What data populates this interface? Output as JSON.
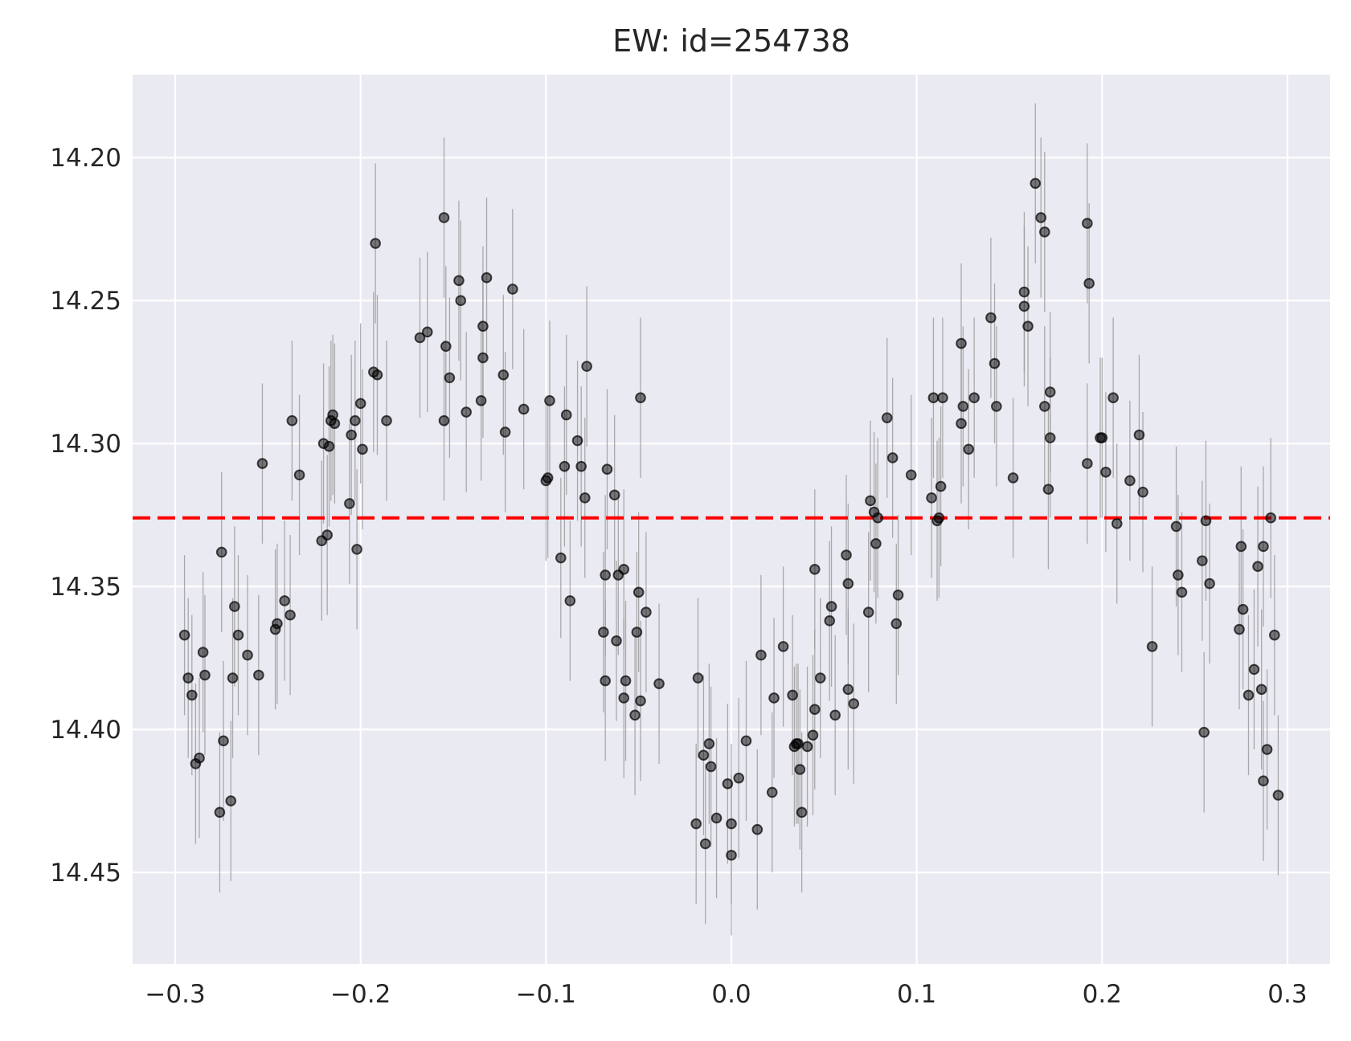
{
  "chart_data": {
    "type": "scatter",
    "title": "EW: id=254738",
    "xlabel": "",
    "ylabel": "",
    "xlim": [
      -0.323,
      0.323
    ],
    "ylim": [
      14.482,
      14.171
    ],
    "y_inverted": true,
    "grid": true,
    "x_ticks": [
      -0.3,
      -0.2,
      -0.1,
      0.0,
      0.1,
      0.2,
      0.3
    ],
    "x_tick_labels": [
      "−0.3",
      "−0.2",
      "−0.1",
      "0.0",
      "0.1",
      "0.2",
      "0.3"
    ],
    "y_ticks": [
      14.2,
      14.25,
      14.3,
      14.35,
      14.4,
      14.45
    ],
    "y_tick_labels": [
      "14.20",
      "14.25",
      "14.30",
      "14.35",
      "14.40",
      "14.45"
    ],
    "reference_line": {
      "y": 14.326,
      "color": "#ff0000",
      "style": "dashed"
    },
    "colors": {
      "background": "#eaeaf2",
      "grid": "#ffffff",
      "points": "#000000",
      "errorbars": "#999999"
    },
    "points": [
      {
        "x": -0.295,
        "y": 14.367,
        "err": 0.028
      },
      {
        "x": -0.293,
        "y": 14.382,
        "err": 0.028
      },
      {
        "x": -0.291,
        "y": 14.388,
        "err": 0.028
      },
      {
        "x": -0.289,
        "y": 14.412,
        "err": 0.028
      },
      {
        "x": -0.287,
        "y": 14.41,
        "err": 0.028
      },
      {
        "x": -0.285,
        "y": 14.373,
        "err": 0.028
      },
      {
        "x": -0.284,
        "y": 14.381,
        "err": 0.028
      },
      {
        "x": -0.276,
        "y": 14.429,
        "err": 0.028
      },
      {
        "x": -0.275,
        "y": 14.338,
        "err": 0.028
      },
      {
        "x": -0.274,
        "y": 14.404,
        "err": 0.028
      },
      {
        "x": -0.27,
        "y": 14.425,
        "err": 0.028
      },
      {
        "x": -0.269,
        "y": 14.382,
        "err": 0.028
      },
      {
        "x": -0.268,
        "y": 14.357,
        "err": 0.028
      },
      {
        "x": -0.266,
        "y": 14.367,
        "err": 0.028
      },
      {
        "x": -0.261,
        "y": 14.374,
        "err": 0.028
      },
      {
        "x": -0.255,
        "y": 14.381,
        "err": 0.028
      },
      {
        "x": -0.253,
        "y": 14.307,
        "err": 0.028
      },
      {
        "x": -0.246,
        "y": 14.365,
        "err": 0.028
      },
      {
        "x": -0.245,
        "y": 14.363,
        "err": 0.028
      },
      {
        "x": -0.241,
        "y": 14.355,
        "err": 0.028
      },
      {
        "x": -0.238,
        "y": 14.36,
        "err": 0.028
      },
      {
        "x": -0.237,
        "y": 14.292,
        "err": 0.028
      },
      {
        "x": -0.233,
        "y": 14.311,
        "err": 0.028
      },
      {
        "x": -0.221,
        "y": 14.334,
        "err": 0.028
      },
      {
        "x": -0.22,
        "y": 14.3,
        "err": 0.028
      },
      {
        "x": -0.218,
        "y": 14.332,
        "err": 0.028
      },
      {
        "x": -0.217,
        "y": 14.301,
        "err": 0.028
      },
      {
        "x": -0.216,
        "y": 14.292,
        "err": 0.028
      },
      {
        "x": -0.215,
        "y": 14.29,
        "err": 0.028
      },
      {
        "x": -0.214,
        "y": 14.293,
        "err": 0.028
      },
      {
        "x": -0.206,
        "y": 14.321,
        "err": 0.028
      },
      {
        "x": -0.205,
        "y": 14.297,
        "err": 0.028
      },
      {
        "x": -0.203,
        "y": 14.292,
        "err": 0.028
      },
      {
        "x": -0.202,
        "y": 14.337,
        "err": 0.028
      },
      {
        "x": -0.2,
        "y": 14.286,
        "err": 0.028
      },
      {
        "x": -0.199,
        "y": 14.302,
        "err": 0.028
      },
      {
        "x": -0.193,
        "y": 14.275,
        "err": 0.028
      },
      {
        "x": -0.192,
        "y": 14.23,
        "err": 0.028
      },
      {
        "x": -0.191,
        "y": 14.276,
        "err": 0.028
      },
      {
        "x": -0.186,
        "y": 14.292,
        "err": 0.028
      },
      {
        "x": -0.168,
        "y": 14.263,
        "err": 0.028
      },
      {
        "x": -0.164,
        "y": 14.261,
        "err": 0.028
      },
      {
        "x": -0.155,
        "y": 14.292,
        "err": 0.028
      },
      {
        "x": -0.155,
        "y": 14.221,
        "err": 0.028
      },
      {
        "x": -0.154,
        "y": 14.266,
        "err": 0.028
      },
      {
        "x": -0.152,
        "y": 14.277,
        "err": 0.028
      },
      {
        "x": -0.147,
        "y": 14.243,
        "err": 0.028
      },
      {
        "x": -0.146,
        "y": 14.25,
        "err": 0.028
      },
      {
        "x": -0.143,
        "y": 14.289,
        "err": 0.028
      },
      {
        "x": -0.135,
        "y": 14.285,
        "err": 0.028
      },
      {
        "x": -0.134,
        "y": 14.259,
        "err": 0.028
      },
      {
        "x": -0.134,
        "y": 14.27,
        "err": 0.028
      },
      {
        "x": -0.132,
        "y": 14.242,
        "err": 0.028
      },
      {
        "x": -0.123,
        "y": 14.276,
        "err": 0.028
      },
      {
        "x": -0.122,
        "y": 14.296,
        "err": 0.028
      },
      {
        "x": -0.118,
        "y": 14.246,
        "err": 0.028
      },
      {
        "x": -0.112,
        "y": 14.288,
        "err": 0.028
      },
      {
        "x": -0.1,
        "y": 14.313,
        "err": 0.028
      },
      {
        "x": -0.099,
        "y": 14.312,
        "err": 0.028
      },
      {
        "x": -0.098,
        "y": 14.285,
        "err": 0.028
      },
      {
        "x": -0.092,
        "y": 14.34,
        "err": 0.028
      },
      {
        "x": -0.09,
        "y": 14.308,
        "err": 0.028
      },
      {
        "x": -0.089,
        "y": 14.29,
        "err": 0.028
      },
      {
        "x": -0.087,
        "y": 14.355,
        "err": 0.028
      },
      {
        "x": -0.083,
        "y": 14.299,
        "err": 0.028
      },
      {
        "x": -0.081,
        "y": 14.308,
        "err": 0.028
      },
      {
        "x": -0.079,
        "y": 14.319,
        "err": 0.028
      },
      {
        "x": -0.078,
        "y": 14.273,
        "err": 0.028
      },
      {
        "x": -0.069,
        "y": 14.366,
        "err": 0.028
      },
      {
        "x": -0.068,
        "y": 14.383,
        "err": 0.028
      },
      {
        "x": -0.068,
        "y": 14.346,
        "err": 0.028
      },
      {
        "x": -0.067,
        "y": 14.309,
        "err": 0.028
      },
      {
        "x": -0.063,
        "y": 14.318,
        "err": 0.028
      },
      {
        "x": -0.062,
        "y": 14.369,
        "err": 0.028
      },
      {
        "x": -0.061,
        "y": 14.346,
        "err": 0.028
      },
      {
        "x": -0.058,
        "y": 14.344,
        "err": 0.028
      },
      {
        "x": -0.058,
        "y": 14.389,
        "err": 0.028
      },
      {
        "x": -0.057,
        "y": 14.383,
        "err": 0.028
      },
      {
        "x": -0.052,
        "y": 14.395,
        "err": 0.028
      },
      {
        "x": -0.051,
        "y": 14.366,
        "err": 0.028
      },
      {
        "x": -0.05,
        "y": 14.352,
        "err": 0.028
      },
      {
        "x": -0.049,
        "y": 14.39,
        "err": 0.028
      },
      {
        "x": -0.049,
        "y": 14.284,
        "err": 0.028
      },
      {
        "x": -0.046,
        "y": 14.359,
        "err": 0.028
      },
      {
        "x": -0.039,
        "y": 14.384,
        "err": 0.028
      },
      {
        "x": -0.019,
        "y": 14.433,
        "err": 0.028
      },
      {
        "x": -0.018,
        "y": 14.382,
        "err": 0.028
      },
      {
        "x": -0.015,
        "y": 14.409,
        "err": 0.028
      },
      {
        "x": -0.014,
        "y": 14.44,
        "err": 0.028
      },
      {
        "x": -0.012,
        "y": 14.405,
        "err": 0.028
      },
      {
        "x": -0.011,
        "y": 14.413,
        "err": 0.028
      },
      {
        "x": -0.008,
        "y": 14.431,
        "err": 0.028
      },
      {
        "x": -0.002,
        "y": 14.419,
        "err": 0.028
      },
      {
        "x": 0.0,
        "y": 14.433,
        "err": 0.028
      },
      {
        "x": 0.0,
        "y": 14.444,
        "err": 0.028
      },
      {
        "x": 0.004,
        "y": 14.417,
        "err": 0.028
      },
      {
        "x": 0.008,
        "y": 14.404,
        "err": 0.028
      },
      {
        "x": 0.014,
        "y": 14.435,
        "err": 0.028
      },
      {
        "x": 0.016,
        "y": 14.374,
        "err": 0.028
      },
      {
        "x": 0.022,
        "y": 14.422,
        "err": 0.028
      },
      {
        "x": 0.023,
        "y": 14.389,
        "err": 0.028
      },
      {
        "x": 0.028,
        "y": 14.371,
        "err": 0.028
      },
      {
        "x": 0.033,
        "y": 14.388,
        "err": 0.028
      },
      {
        "x": 0.034,
        "y": 14.406,
        "err": 0.028
      },
      {
        "x": 0.035,
        "y": 14.405,
        "err": 0.028
      },
      {
        "x": 0.036,
        "y": 14.405,
        "err": 0.028
      },
      {
        "x": 0.037,
        "y": 14.414,
        "err": 0.028
      },
      {
        "x": 0.038,
        "y": 14.429,
        "err": 0.028
      },
      {
        "x": 0.041,
        "y": 14.406,
        "err": 0.028
      },
      {
        "x": 0.044,
        "y": 14.402,
        "err": 0.028
      },
      {
        "x": 0.045,
        "y": 14.393,
        "err": 0.028
      },
      {
        "x": 0.045,
        "y": 14.344,
        "err": 0.028
      },
      {
        "x": 0.048,
        "y": 14.382,
        "err": 0.028
      },
      {
        "x": 0.053,
        "y": 14.362,
        "err": 0.028
      },
      {
        "x": 0.054,
        "y": 14.357,
        "err": 0.028
      },
      {
        "x": 0.056,
        "y": 14.395,
        "err": 0.028
      },
      {
        "x": 0.062,
        "y": 14.339,
        "err": 0.028
      },
      {
        "x": 0.063,
        "y": 14.386,
        "err": 0.028
      },
      {
        "x": 0.063,
        "y": 14.349,
        "err": 0.028
      },
      {
        "x": 0.066,
        "y": 14.391,
        "err": 0.028
      },
      {
        "x": 0.074,
        "y": 14.359,
        "err": 0.028
      },
      {
        "x": 0.075,
        "y": 14.32,
        "err": 0.028
      },
      {
        "x": 0.077,
        "y": 14.324,
        "err": 0.028
      },
      {
        "x": 0.078,
        "y": 14.335,
        "err": 0.028
      },
      {
        "x": 0.079,
        "y": 14.326,
        "err": 0.028
      },
      {
        "x": 0.084,
        "y": 14.291,
        "err": 0.028
      },
      {
        "x": 0.087,
        "y": 14.305,
        "err": 0.028
      },
      {
        "x": 0.089,
        "y": 14.363,
        "err": 0.028
      },
      {
        "x": 0.09,
        "y": 14.353,
        "err": 0.028
      },
      {
        "x": 0.097,
        "y": 14.311,
        "err": 0.028
      },
      {
        "x": 0.108,
        "y": 14.319,
        "err": 0.028
      },
      {
        "x": 0.109,
        "y": 14.284,
        "err": 0.028
      },
      {
        "x": 0.111,
        "y": 14.327,
        "err": 0.028
      },
      {
        "x": 0.112,
        "y": 14.326,
        "err": 0.028
      },
      {
        "x": 0.113,
        "y": 14.315,
        "err": 0.028
      },
      {
        "x": 0.114,
        "y": 14.284,
        "err": 0.028
      },
      {
        "x": 0.124,
        "y": 14.265,
        "err": 0.028
      },
      {
        "x": 0.124,
        "y": 14.293,
        "err": 0.028
      },
      {
        "x": 0.125,
        "y": 14.287,
        "err": 0.028
      },
      {
        "x": 0.128,
        "y": 14.302,
        "err": 0.028
      },
      {
        "x": 0.131,
        "y": 14.284,
        "err": 0.028
      },
      {
        "x": 0.14,
        "y": 14.256,
        "err": 0.028
      },
      {
        "x": 0.142,
        "y": 14.272,
        "err": 0.028
      },
      {
        "x": 0.143,
        "y": 14.287,
        "err": 0.028
      },
      {
        "x": 0.152,
        "y": 14.312,
        "err": 0.028
      },
      {
        "x": 0.158,
        "y": 14.247,
        "err": 0.028
      },
      {
        "x": 0.158,
        "y": 14.252,
        "err": 0.028
      },
      {
        "x": 0.16,
        "y": 14.259,
        "err": 0.028
      },
      {
        "x": 0.164,
        "y": 14.209,
        "err": 0.028
      },
      {
        "x": 0.167,
        "y": 14.221,
        "err": 0.028
      },
      {
        "x": 0.169,
        "y": 14.226,
        "err": 0.028
      },
      {
        "x": 0.169,
        "y": 14.287,
        "err": 0.028
      },
      {
        "x": 0.171,
        "y": 14.316,
        "err": 0.028
      },
      {
        "x": 0.172,
        "y": 14.282,
        "err": 0.028
      },
      {
        "x": 0.172,
        "y": 14.298,
        "err": 0.028
      },
      {
        "x": 0.192,
        "y": 14.307,
        "err": 0.028
      },
      {
        "x": 0.192,
        "y": 14.223,
        "err": 0.028
      },
      {
        "x": 0.193,
        "y": 14.244,
        "err": 0.028
      },
      {
        "x": 0.199,
        "y": 14.298,
        "err": 0.028
      },
      {
        "x": 0.2,
        "y": 14.298,
        "err": 0.028
      },
      {
        "x": 0.202,
        "y": 14.31,
        "err": 0.028
      },
      {
        "x": 0.206,
        "y": 14.284,
        "err": 0.028
      },
      {
        "x": 0.208,
        "y": 14.328,
        "err": 0.028
      },
      {
        "x": 0.215,
        "y": 14.313,
        "err": 0.028
      },
      {
        "x": 0.22,
        "y": 14.297,
        "err": 0.028
      },
      {
        "x": 0.222,
        "y": 14.317,
        "err": 0.028
      },
      {
        "x": 0.227,
        "y": 14.371,
        "err": 0.028
      },
      {
        "x": 0.24,
        "y": 14.329,
        "err": 0.028
      },
      {
        "x": 0.241,
        "y": 14.346,
        "err": 0.028
      },
      {
        "x": 0.243,
        "y": 14.352,
        "err": 0.028
      },
      {
        "x": 0.254,
        "y": 14.341,
        "err": 0.028
      },
      {
        "x": 0.255,
        "y": 14.401,
        "err": 0.028
      },
      {
        "x": 0.256,
        "y": 14.327,
        "err": 0.028
      },
      {
        "x": 0.258,
        "y": 14.349,
        "err": 0.028
      },
      {
        "x": 0.274,
        "y": 14.365,
        "err": 0.028
      },
      {
        "x": 0.275,
        "y": 14.336,
        "err": 0.028
      },
      {
        "x": 0.276,
        "y": 14.358,
        "err": 0.028
      },
      {
        "x": 0.279,
        "y": 14.388,
        "err": 0.028
      },
      {
        "x": 0.282,
        "y": 14.379,
        "err": 0.028
      },
      {
        "x": 0.284,
        "y": 14.343,
        "err": 0.028
      },
      {
        "x": 0.286,
        "y": 14.386,
        "err": 0.028
      },
      {
        "x": 0.287,
        "y": 14.418,
        "err": 0.028
      },
      {
        "x": 0.287,
        "y": 14.336,
        "err": 0.028
      },
      {
        "x": 0.289,
        "y": 14.407,
        "err": 0.028
      },
      {
        "x": 0.291,
        "y": 14.326,
        "err": 0.028
      },
      {
        "x": 0.293,
        "y": 14.367,
        "err": 0.028
      },
      {
        "x": 0.295,
        "y": 14.423,
        "err": 0.028
      }
    ]
  }
}
